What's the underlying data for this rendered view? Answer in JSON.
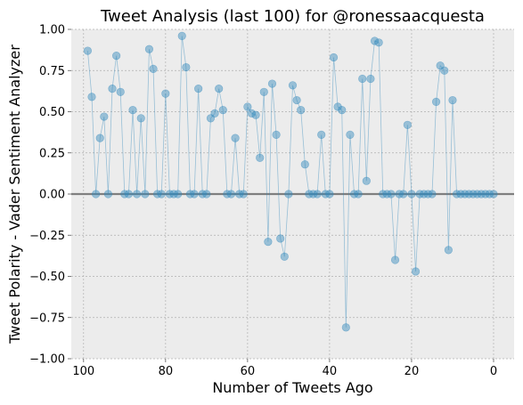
{
  "chart_data": {
    "type": "scatter",
    "title": "Tweet Analysis (last 100) for @ronessaacquesta",
    "xlabel": "Number of Tweets Ago",
    "ylabel": "Tweet Polarity - Vader Sentiment Analyzer",
    "xlim": [
      103,
      -5
    ],
    "ylim": [
      -1.0,
      1.0
    ],
    "x_axis_inverted": true,
    "grid": true,
    "x_ticks": [
      100,
      80,
      60,
      40,
      20,
      0
    ],
    "x_tick_labels": [
      "100",
      "80",
      "60",
      "40",
      "20",
      "0"
    ],
    "y_ticks": [
      1.0,
      0.75,
      0.5,
      0.25,
      0.0,
      -0.25,
      -0.5,
      -0.75,
      -1.0
    ],
    "y_tick_labels": [
      "1.00",
      "0.75",
      "0.50",
      "0.25",
      "0.00",
      "−0.25",
      "−0.50",
      "−0.75",
      "−1.00"
    ],
    "baseline_y": 0,
    "colors": {
      "background": "#ececec",
      "marker": "#348abd",
      "line": "#348abd",
      "baseline": "#7f7f7f",
      "grid": "#b0b0b0"
    },
    "series": [
      {
        "x": [
          99,
          98,
          97,
          96,
          95,
          94,
          93,
          92,
          91,
          90,
          89,
          88,
          87,
          86,
          85,
          84,
          83,
          82,
          81,
          80,
          79,
          78,
          77,
          76,
          75,
          74,
          73,
          72,
          71,
          70,
          69,
          68,
          67,
          66,
          65,
          64,
          63,
          62,
          61,
          60,
          59,
          58,
          57,
          56,
          55,
          54,
          53,
          52,
          51,
          50,
          49,
          48,
          47,
          46,
          45,
          44,
          43,
          42,
          41,
          40,
          39,
          38,
          37,
          36,
          35,
          34,
          33,
          32,
          31,
          30,
          29,
          28,
          27,
          26,
          25,
          24,
          23,
          22,
          21,
          20,
          19,
          18,
          17,
          16,
          15,
          14,
          13,
          12,
          11,
          10,
          9,
          8,
          7,
          6,
          5,
          4,
          3,
          2,
          1,
          0
        ],
        "y": [
          0.87,
          0.59,
          0.0,
          0.34,
          0.47,
          0.0,
          0.64,
          0.84,
          0.62,
          0.0,
          0.0,
          0.51,
          0.0,
          0.46,
          0.0,
          0.88,
          0.76,
          0.0,
          0.0,
          0.61,
          0.0,
          0.0,
          0.0,
          0.96,
          0.77,
          0.0,
          0.0,
          0.64,
          0.0,
          0.0,
          0.46,
          0.49,
          0.64,
          0.51,
          0.0,
          0.0,
          0.34,
          0.0,
          0.0,
          0.53,
          0.49,
          0.48,
          0.22,
          0.62,
          -0.29,
          0.67,
          0.36,
          -0.27,
          -0.38,
          0.0,
          0.66,
          0.57,
          0.51,
          0.18,
          0.0,
          0.0,
          0.0,
          0.36,
          0.0,
          0.0,
          0.83,
          0.53,
          0.51,
          -0.81,
          0.36,
          0.0,
          0.0,
          0.7,
          0.08,
          0.7,
          0.93,
          0.92,
          0.0,
          0.0,
          0.0,
          -0.4,
          0.0,
          0.0,
          0.42,
          0.0,
          -0.47,
          0.0,
          0.0,
          0.0,
          0.0,
          0.56,
          0.78,
          0.75,
          -0.34,
          0.57,
          0.0,
          0.0,
          0.0,
          0.0,
          0.0,
          0.0,
          0.0,
          0.0,
          0.0,
          0.0
        ]
      }
    ]
  }
}
